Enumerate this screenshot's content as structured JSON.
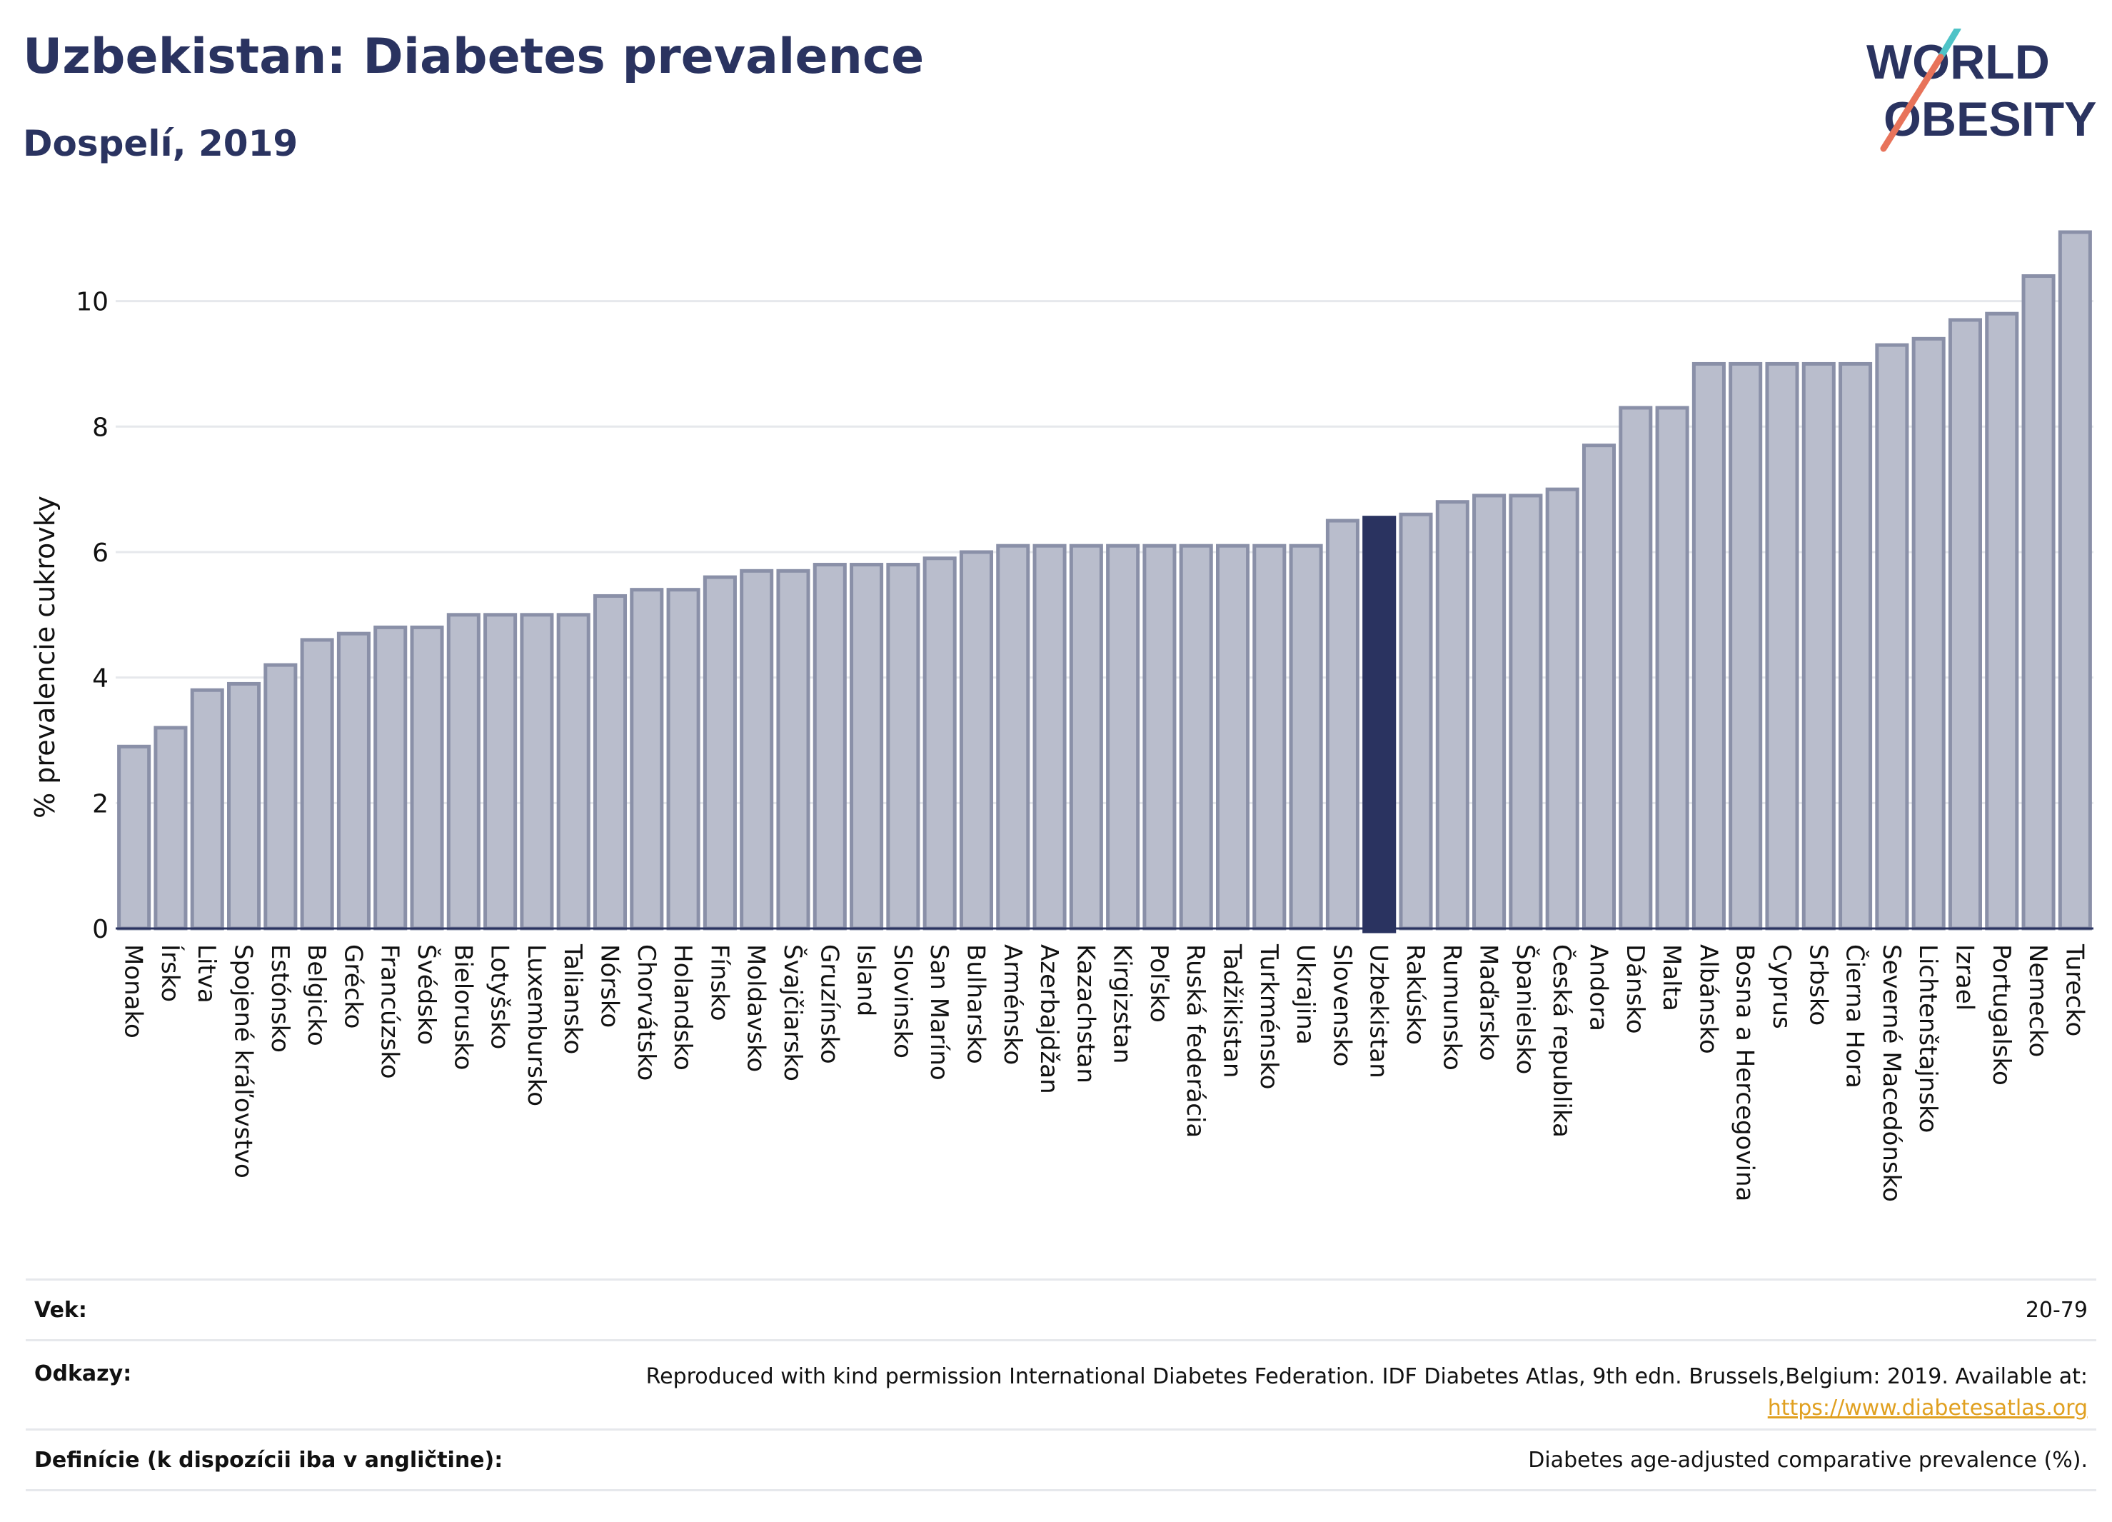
{
  "header": {
    "title": "Uzbekistan: Diabetes prevalence",
    "subtitle": "Dospelí, 2019"
  },
  "logo": {
    "line1": "WORLD",
    "line2": "OBESITY",
    "slash_colors": [
      "#4fc3c7",
      "#e8735a"
    ],
    "text_color": "#2a3360"
  },
  "colors": {
    "bar_default": "#b9bdcc",
    "bar_border": "#8a90a8",
    "bar_highlight": "#2a3360",
    "text_dark": "#2a3360",
    "grid": "#e6e8ec"
  },
  "chart_data": {
    "type": "bar",
    "title": "Uzbekistan: Diabetes prevalence",
    "subtitle": "Dospelí, 2019",
    "xlabel": "",
    "ylabel": "% prevalencie cukrovky",
    "ylim": [
      0,
      11.1
    ],
    "yticks": [
      0,
      2,
      4,
      6,
      8,
      10
    ],
    "grid": true,
    "highlight": "Uzbekistan",
    "categories": [
      "Monako",
      "Írsko",
      "Litva",
      "Spojené kráľovstvo",
      "Estónsko",
      "Belgicko",
      "Grécko",
      "Francúzsko",
      "Švédsko",
      "Bielorusko",
      "Lotyšsko",
      "Luxembursko",
      "Taliansko",
      "Nórsko",
      "Chorvátsko",
      "Holandsko",
      "Fínsko",
      "Moldavsko",
      "Švajčiarsko",
      "Gruzínsko",
      "Island",
      "Slovinsko",
      "San Maríno",
      "Bulharsko",
      "Arménsko",
      "Azerbajdžan",
      "Kazachstan",
      "Kirgizstan",
      "Poľsko",
      "Ruská federácia",
      "Tadžikistan",
      "Turkménsko",
      "Ukrajina",
      "Slovensko",
      "Uzbekistan",
      "Rakúsko",
      "Rumunsko",
      "Maďarsko",
      "Španielsko",
      "Česká republika",
      "Andora",
      "Dánsko",
      "Malta",
      "Albánsko",
      "Bosna a Hercegovina",
      "Cyprus",
      "Srbsko",
      "Čierna Hora",
      "Severné Macedónsko",
      "Lichtenštajnsko",
      "Izrael",
      "Portugalsko",
      "Nemecko",
      "Turecko"
    ],
    "values": [
      2.9,
      3.2,
      3.8,
      3.9,
      4.2,
      4.6,
      4.7,
      4.8,
      4.8,
      5.0,
      5.0,
      5.0,
      5.0,
      5.3,
      5.4,
      5.4,
      5.6,
      5.7,
      5.7,
      5.8,
      5.8,
      5.8,
      5.9,
      6.0,
      6.1,
      6.1,
      6.1,
      6.1,
      6.1,
      6.1,
      6.1,
      6.1,
      6.1,
      6.5,
      6.55,
      6.6,
      6.8,
      6.9,
      6.9,
      7.0,
      7.7,
      8.3,
      8.3,
      9.0,
      9.0,
      9.0,
      9.0,
      9.0,
      9.3,
      9.4,
      9.7,
      9.8,
      10.4,
      11.1
    ]
  },
  "footer": {
    "age_label": "Vek:",
    "age_value": "20-79",
    "ref_label": "Odkazy:",
    "ref_text": "Reproduced with kind permission International Diabetes Federation. IDF Diabetes Atlas, 9th edn. Brussels,Belgium: 2019. Available at:",
    "ref_link": "https://www.diabetesatlas.org",
    "def_label": "Definície (k dispozícii iba v angličtine):",
    "def_value": "Diabetes age-adjusted comparative prevalence (%)."
  }
}
